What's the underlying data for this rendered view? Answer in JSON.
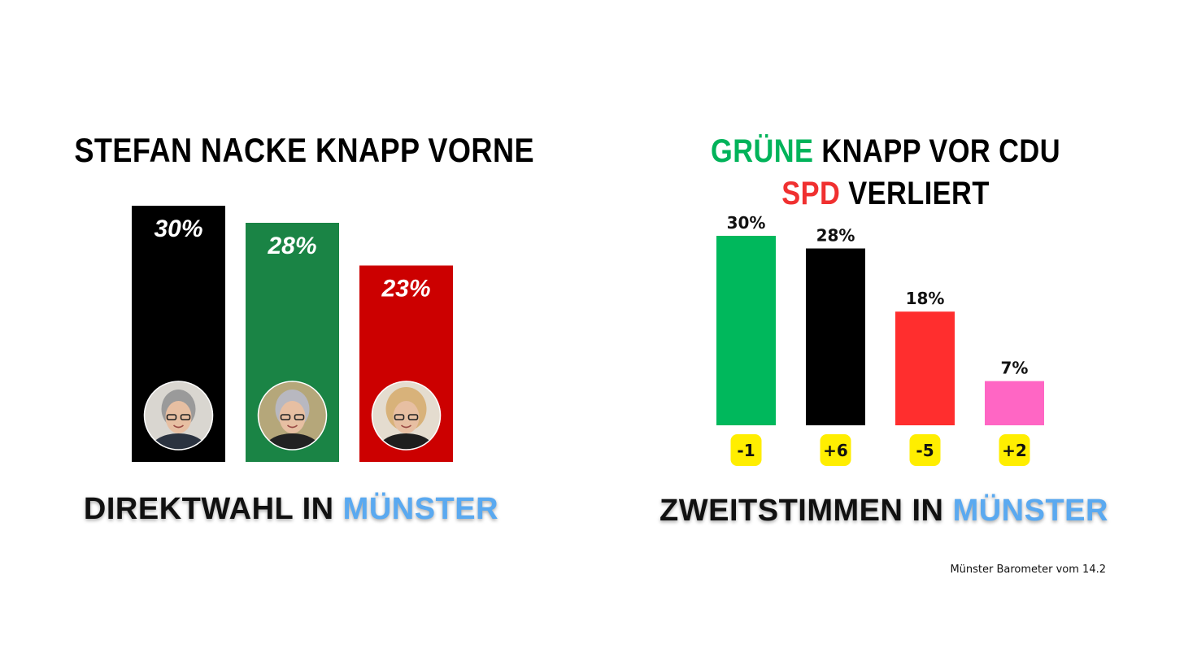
{
  "colors": {
    "highlight_blue": "#5aa9f0",
    "gruene_green": "#00b35a",
    "spd_red": "#f03030"
  },
  "left_panel": {
    "title": "STEFAN NACKE KNAPP VORNE",
    "subtitle_main": "DIREKTWAHL IN",
    "subtitle_highlight": "MÜNSTER"
  },
  "right_panel": {
    "title_line1_highlight": "GRÜNE",
    "title_line1_rest": "KNAPP VOR CDU",
    "title_line2_highlight": "SPD",
    "title_line2_rest": "VERLIERT",
    "subtitle_main": "ZWEITSTIMMEN IN",
    "subtitle_highlight": "MÜNSTER"
  },
  "source": "Münster Barometer vom 14.2",
  "chart_data": [
    {
      "type": "bar",
      "values": [
        30,
        28,
        23
      ],
      "value_labels": [
        "30%",
        "28%",
        "23%"
      ],
      "colors": [
        "#000000",
        "#1a8445",
        "#cc0000"
      ],
      "icons": [
        "candidate-photo",
        "candidate-photo",
        "candidate-photo"
      ]
    },
    {
      "type": "bar",
      "values": [
        30,
        28,
        18,
        7
      ],
      "value_labels": [
        "30%",
        "28%",
        "18%",
        "7%"
      ],
      "change_labels": [
        "-1",
        "+6",
        "-5",
        "+2"
      ],
      "colors": [
        "#00b85c",
        "#000000",
        "#ff2e2e",
        "#ff66c4"
      ],
      "badge_color": "#ffee00"
    }
  ]
}
